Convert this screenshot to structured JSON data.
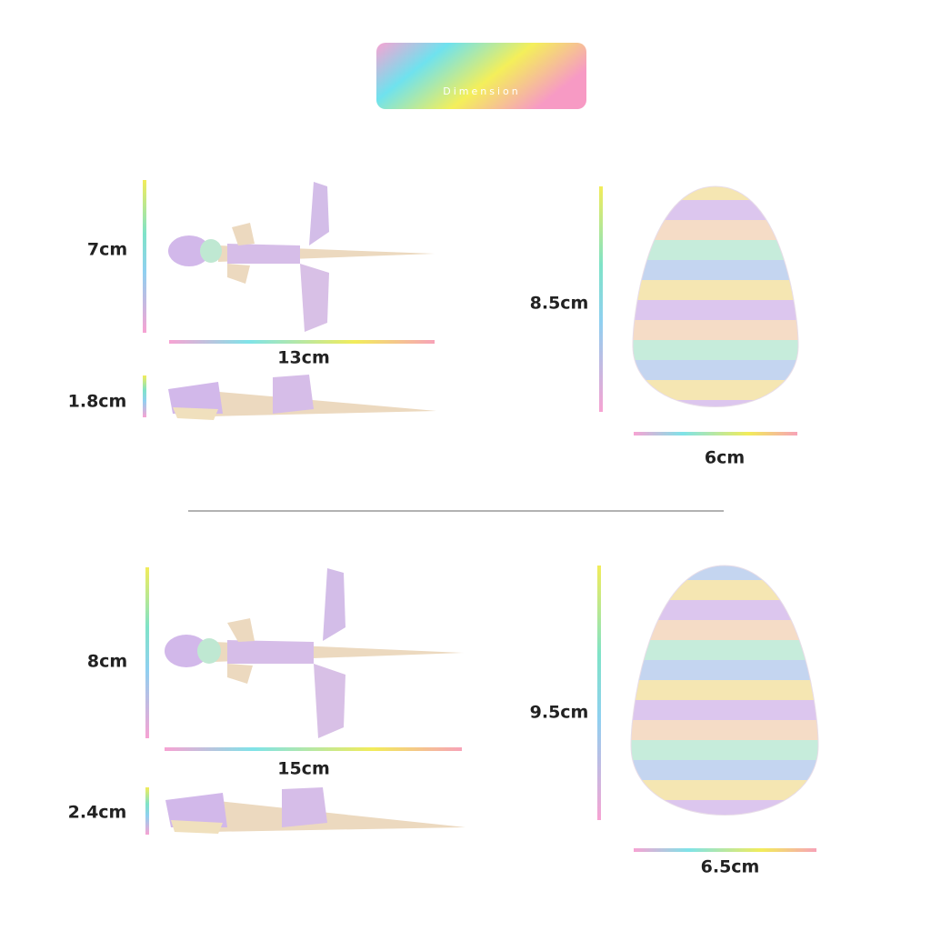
{
  "header": {
    "title": "Dimension"
  },
  "sections": [
    {
      "dino_top": {
        "height": "7cm",
        "length": "13cm"
      },
      "dino_side": {
        "height": "1.8cm"
      },
      "egg": {
        "height": "8.5cm",
        "width": "6cm"
      }
    },
    {
      "dino_top": {
        "height": "8cm",
        "length": "15cm"
      },
      "dino_side": {
        "height": "2.4cm"
      },
      "egg": {
        "height": "9.5cm",
        "width": "6.5cm"
      }
    }
  ]
}
